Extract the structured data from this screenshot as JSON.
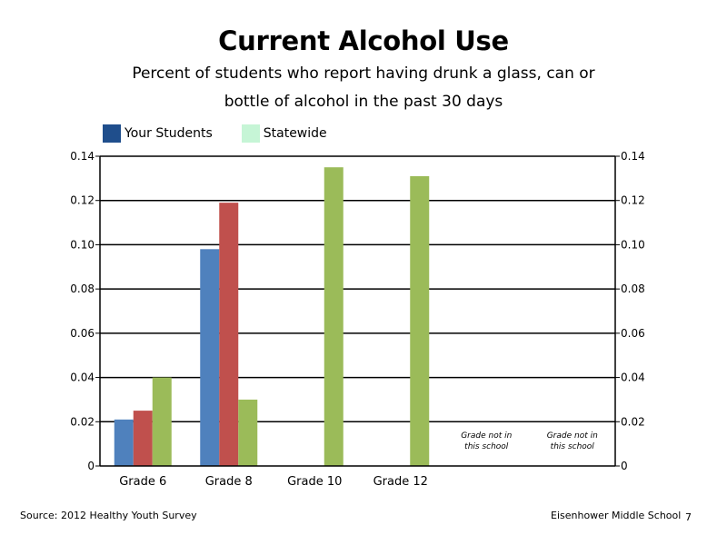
{
  "title": "Current Alcohol Use",
  "subtitle_line1": "Percent of students who report having drunk a glass, can or",
  "subtitle_line2": "bottle of alcohol in the past 30 days",
  "legend": [
    {
      "label": "Your Students",
      "color": "#1f4e8c"
    },
    {
      "label": "Statewide",
      "color": "#c6f5d6"
    }
  ],
  "chart_data": {
    "type": "bar",
    "categories": [
      "Grade 6",
      "Grade 8",
      "Grade 10",
      "Grade 12",
      "",
      ""
    ],
    "series": [
      {
        "color": "#4f81bd",
        "values": [
          0.021,
          0.098,
          null,
          null,
          null,
          null
        ]
      },
      {
        "color": "#c0504d",
        "values": [
          0.025,
          0.119,
          null,
          null,
          null,
          null
        ]
      },
      {
        "color": "#9bbb59",
        "values": [
          0.04,
          0.03,
          0.135,
          0.131,
          null,
          null
        ]
      }
    ],
    "ylim": [
      0,
      0.14
    ],
    "yticks": [
      0,
      0.02,
      0.04,
      0.06,
      0.08,
      0.1,
      0.12,
      0.14
    ],
    "ytick_labels": [
      "0",
      "0.02",
      "0.04",
      "0.06",
      "0.08",
      "0.10",
      "0.12",
      "0.14"
    ],
    "secondary_axis": true,
    "grid": true,
    "annotations": [
      {
        "category_index": 4,
        "line1": "Grade not in",
        "line2": "this school"
      },
      {
        "category_index": 5,
        "line1": "Grade not in",
        "line2": "this school"
      }
    ]
  },
  "footer": {
    "source": "Source: 2012 Healthy Youth Survey",
    "school": "Eisenhower Middle  School",
    "page_number": "7"
  }
}
